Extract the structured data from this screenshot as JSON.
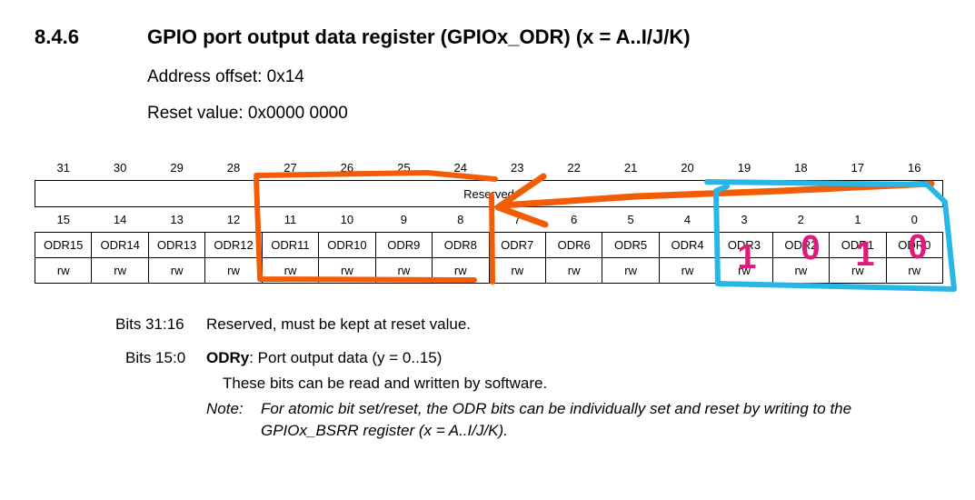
{
  "section": {
    "number": "8.4.6",
    "title": "GPIO port output data register (GPIOx_ODR) (x = A..I/J/K)",
    "address_offset": "Address offset: 0x14",
    "reset_value": "Reset value: 0x0000 0000"
  },
  "register": {
    "high_bits": [
      "31",
      "30",
      "29",
      "28",
      "27",
      "26",
      "25",
      "24",
      "23",
      "22",
      "21",
      "20",
      "19",
      "18",
      "17",
      "16"
    ],
    "reserved_label": "Reserved",
    "low_bits": [
      "15",
      "14",
      "13",
      "12",
      "11",
      "10",
      "9",
      "8",
      "7",
      "6",
      "5",
      "4",
      "3",
      "2",
      "1",
      "0"
    ],
    "field_names": [
      "ODR15",
      "ODR14",
      "ODR13",
      "ODR12",
      "ODR11",
      "ODR10",
      "ODR9",
      "ODR8",
      "ODR7",
      "ODR6",
      "ODR5",
      "ODR4",
      "ODR3",
      "ODR2",
      "ODR1",
      "ODR0"
    ],
    "access": [
      "rw",
      "rw",
      "rw",
      "rw",
      "rw",
      "rw",
      "rw",
      "rw",
      "rw",
      "rw",
      "rw",
      "rw",
      "rw",
      "rw",
      "rw",
      "rw"
    ]
  },
  "description": {
    "bits_31_16_label": "Bits 31:16",
    "bits_31_16_text": "Reserved, must be kept at reset value.",
    "bits_15_0_label": "Bits 15:0",
    "bits_15_0_field": "ODRy",
    "bits_15_0_text": ": Port output data (y = 0..15)",
    "bits_15_0_detail": "These bits can be read and written by software.",
    "note_label": "Note:",
    "note_line1": "For atomic bit set/reset, the ODR bits can be individually set and reset by writing to the",
    "note_line2": "GPIOx_BSRR register (x = A..I/J/K)."
  },
  "annotations": {
    "handwritten_bits": [
      "1",
      "0",
      "1",
      "0"
    ],
    "colors": {
      "orange": "#f25c05",
      "blue": "#29b6e6",
      "magenta": "#e0197d"
    }
  }
}
